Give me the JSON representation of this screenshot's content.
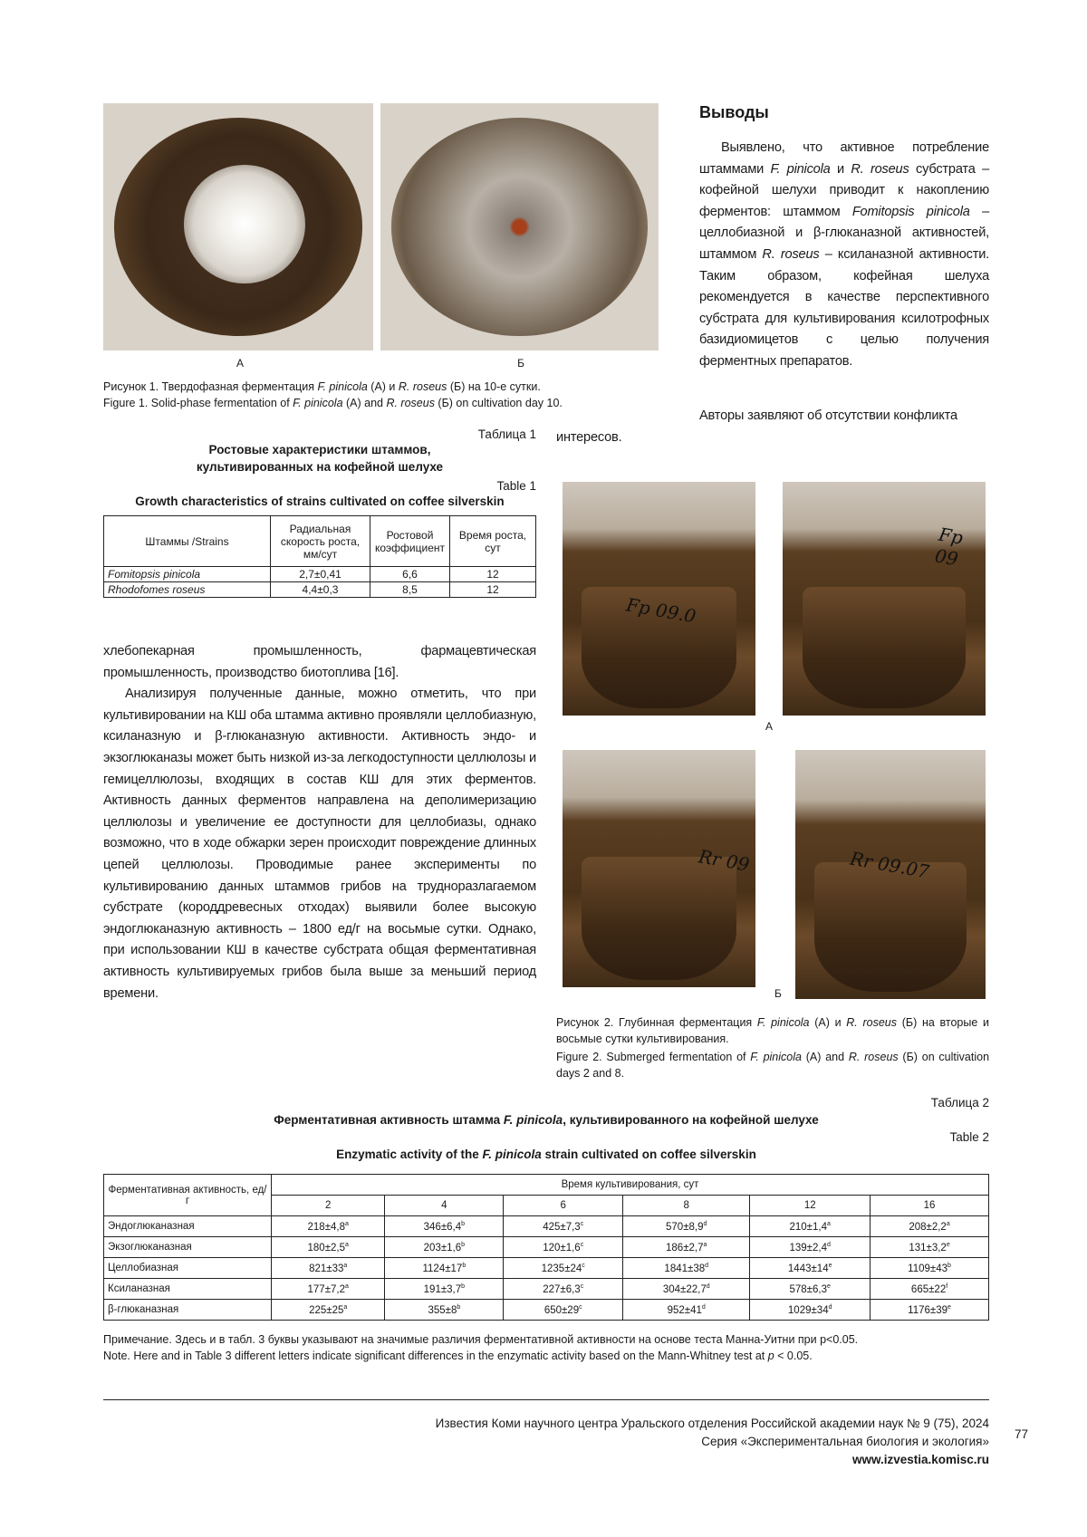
{
  "figure1": {
    "panel_a": "А",
    "panel_b": "Б",
    "caption_ru": [
      "Рисунок 1. Твердофазная ферментация ",
      "F. pinicola",
      " (А) и ",
      "R. roseus",
      " (Б) на 10-е сутки."
    ],
    "caption_en": [
      "Figure 1. Solid-phase fermentation of ",
      "F. pinicola",
      " (A) and ",
      "R. roseus",
      " (Б) on cultivation day 10."
    ]
  },
  "conclusions": {
    "title": "Выводы",
    "text": [
      "Выявлено, что активное потребление штаммами ",
      "F. pinicola",
      " и ",
      "R. roseus",
      " субстрата – кофейной шелухи приводит к накоплению ферментов: штаммом ",
      "Fomitopsis pinicola",
      " – целлобиазной и β-глюканазной активностей, штаммом ",
      "R. roseus",
      " – ксиланазной активности. Таким образом, кофейная шелуха рекомендуется в качестве перспективного субстрата для культивирования ксилотрофных базидиомицетов с целью получения ферментных препаратов."
    ],
    "conflict": "Авторы заявляют об отсутствии конфликта интересов."
  },
  "table1": {
    "label_ru": "Таблица 1",
    "title_ru": "Ростовые характеристики штаммов, культивированных на кофейной шелухе",
    "label_en": "Table 1",
    "title_en": "Growth characteristics of strains cultivated on coffee silverskin",
    "headers": [
      "Штаммы /Strains",
      "Радиальная скорость роста, мм/сут",
      "Ростовой коэффициент",
      "Время роста, сут"
    ],
    "rows": [
      [
        "Fomitopsis pinicola",
        "2,7±0,41",
        "6,6",
        "12"
      ],
      [
        "Rhodofomes roseus",
        "4,4±0,3",
        "8,5",
        "12"
      ]
    ]
  },
  "body": {
    "p1": "хлебопекарная промышленность, фармацевтическая промышленность, производство биотоплива [16].",
    "p2": "Анализируя полученные данные, можно отметить, что при культивировании на КШ оба штамма активно проявляли целлобиазную, ксиланазную и β-глюканазную активности. Активность эндо- и экзоглюканазы может быть низкой из-за легкодоступности целлюлозы и гемицеллюлозы, входящих в состав КШ для этих ферментов. Активность данных ферментов направлена на деполимеризацию целлюлозы и увеличение ее доступности для целлобиазы, однако возможно, что в ходе обжарки зерен происходит повреждение длинных цепей целлюлозы. Проводимые ранее эксперименты по культивированию данных штаммов грибов на трудноразлагаемом субстрате (короддревесных отходах) выявили более высокую эндоглюканазную активность – 1800 ед/г на восьмые сутки. Однако, при использовании КШ в качестве субстрата общая ферментативная активность культивируемых грибов была выше за меньший период времени."
  },
  "figure2": {
    "panel_a": "А",
    "panel_b": "Б",
    "flask_labels": [
      "Fp 09.0",
      "Fp 09",
      "Rr 09",
      "Rr 09.07"
    ],
    "caption_ru": [
      "Рисунок 2. Глубинная ферментация ",
      "F. pinicola",
      " (А) и ",
      "R. roseus",
      " (Б) на вторые и восьмые сутки культивирования."
    ],
    "caption_en": [
      "Figure 2. Submerged fermentation of ",
      "F. pinicola",
      " (A) and ",
      "R. roseus",
      " (Б) on cultivation days 2 and 8."
    ]
  },
  "table2": {
    "label_ru": "Таблица 2",
    "title_ru": [
      "Ферментативная активность штамма ",
      "F. pinicola",
      ", культивированного на кофейной шелухе"
    ],
    "label_en": "Table 2",
    "title_en": [
      "Enzymatic activity of the ",
      "F. pinicola",
      " strain cultivated on coffee silverskin"
    ],
    "row_header": "Ферментативная активность, ед/г",
    "col_group": "Время культивирования, сут",
    "days": [
      "2",
      "4",
      "6",
      "8",
      "12",
      "16"
    ],
    "rows": [
      {
        "name": "Эндоглюканазная",
        "cells": [
          [
            "218±4,8",
            "a"
          ],
          [
            "346±6,4",
            "b"
          ],
          [
            "425±7,3",
            "c"
          ],
          [
            "570±8,9",
            "d"
          ],
          [
            "210±1,4",
            "a"
          ],
          [
            "208±2,2",
            "a"
          ]
        ]
      },
      {
        "name": "Экзоглюканазная",
        "cells": [
          [
            "180±2,5",
            "a"
          ],
          [
            "203±1,6",
            "b"
          ],
          [
            "120±1,6",
            "c"
          ],
          [
            "186±2,7",
            "a"
          ],
          [
            "139±2,4",
            "d"
          ],
          [
            "131±3,2",
            "e"
          ]
        ]
      },
      {
        "name": "Целлобиазная",
        "cells": [
          [
            "821±33",
            "a"
          ],
          [
            "1124±17",
            "b"
          ],
          [
            "1235±24",
            "c"
          ],
          [
            "1841±38",
            "d"
          ],
          [
            "1443±14",
            "e"
          ],
          [
            "1109±43",
            "b"
          ]
        ]
      },
      {
        "name": "Ксиланазная",
        "cells": [
          [
            "177±7,2",
            "a"
          ],
          [
            "191±3,7",
            "b"
          ],
          [
            "227±6,3",
            "c"
          ],
          [
            "304±22,7",
            "d"
          ],
          [
            "578±6,3",
            "e"
          ],
          [
            "665±22",
            "f"
          ]
        ]
      },
      {
        "name": "β-глюканазная",
        "cells": [
          [
            "225±25",
            "a"
          ],
          [
            "355±8",
            "b"
          ],
          [
            "650±29",
            "c"
          ],
          [
            "952±41",
            "d"
          ],
          [
            "1029±34",
            "d"
          ],
          [
            "1176±39",
            "e"
          ]
        ]
      }
    ],
    "note_ru": "Примечание. Здесь и в табл. 3 буквы указывают на значимые различия ферментативной активности на основе теста Манна-Уитни при p<0.05.",
    "note_en": [
      "Note. Here and in Table 3 different letters indicate significant differences in the enzymatic activity based on the Mann-Whitney test at ",
      "p",
      " < 0.05."
    ]
  },
  "footer": {
    "journal": "Известия Коми научного центра Уральского отделения Российской академии наук № 9 (75), 2024",
    "series": "Серия «Экспериментальная биология и экология»",
    "url": "www.izvestia.komisc.ru",
    "page": "77"
  }
}
